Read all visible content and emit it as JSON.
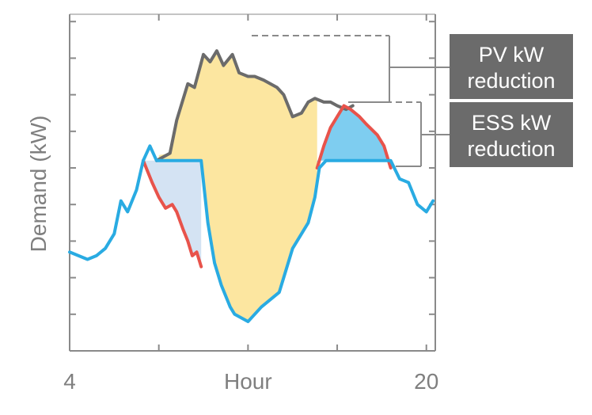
{
  "chart_data": {
    "type": "area",
    "xlabel": "Hour",
    "ylabel": "Demand (kW)",
    "xlim": [
      4,
      20.4
    ],
    "ylim": [
      0,
      9.2
    ],
    "grid": false,
    "x_ticks": [
      4,
      8,
      12,
      16,
      20
    ],
    "x_tick_labels": [
      "4",
      "",
      "Hour",
      "",
      "20"
    ],
    "y_ticks": [
      0,
      1,
      2,
      3,
      4,
      5,
      6,
      7,
      8,
      9
    ],
    "series": [
      {
        "name": "",
        "color": "#6b6b6b",
        "x": [
          7.9,
          8.5,
          8.8,
          9.3,
          9.6,
          10.0,
          10.3,
          10.6,
          10.9,
          11.3,
          11.6,
          12.0,
          12.3,
          12.7,
          13.0,
          13.3,
          13.6,
          14.0,
          14.4,
          14.7,
          15.0,
          15.4,
          15.7,
          16.0,
          16.4,
          16.7
        ],
        "values": [
          5.2,
          5.4,
          6.3,
          7.3,
          7.2,
          8.1,
          7.9,
          8.2,
          7.8,
          8.1,
          7.6,
          7.5,
          7.5,
          7.4,
          7.3,
          7.2,
          7.0,
          6.4,
          6.5,
          6.8,
          6.9,
          6.8,
          6.8,
          6.7,
          6.6,
          6.7
        ]
      },
      {
        "name": "",
        "color": "#e8534b",
        "x": [
          7.3,
          7.7,
          8.0,
          8.3,
          8.6,
          8.8,
          9.1,
          9.3,
          9.5,
          9.7,
          9.9,
          15.1,
          15.4,
          15.7,
          16.0,
          16.3,
          16.6,
          17.0,
          17.3,
          17.8,
          18.1,
          18.4
        ],
        "values": [
          5.2,
          4.6,
          4.2,
          3.9,
          4.0,
          3.8,
          3.3,
          3.0,
          2.6,
          2.7,
          2.3,
          5.0,
          5.6,
          6.1,
          6.4,
          6.7,
          6.6,
          6.4,
          6.2,
          5.9,
          5.6,
          5.0
        ]
      },
      {
        "name": "",
        "color": "#29abe2",
        "x": [
          4.0,
          4.4,
          4.8,
          5.2,
          5.6,
          6.0,
          6.3,
          6.6,
          7.0,
          7.3,
          7.6,
          7.9,
          8.5,
          9.9,
          10.2,
          10.5,
          10.8,
          11.0,
          11.2,
          11.4,
          11.7,
          12.0,
          12.3,
          12.6,
          13.0,
          13.4,
          13.7,
          14.0,
          14.4,
          14.7,
          15.0,
          15.2,
          15.5,
          16.0,
          16.5,
          17.0,
          17.5,
          18.0,
          18.4,
          18.8,
          19.2,
          19.6,
          20.0,
          20.3
        ],
        "values": [
          2.7,
          2.6,
          2.5,
          2.6,
          2.8,
          3.2,
          4.1,
          3.8,
          4.4,
          5.2,
          5.6,
          5.2,
          5.2,
          5.2,
          3.5,
          2.4,
          1.8,
          1.5,
          1.2,
          1.0,
          0.9,
          0.8,
          1.0,
          1.2,
          1.4,
          1.6,
          2.2,
          2.8,
          3.2,
          3.5,
          4.2,
          5.0,
          5.2,
          5.2,
          5.2,
          5.2,
          5.2,
          5.2,
          5.2,
          4.7,
          4.6,
          4.0,
          3.8,
          4.1
        ]
      }
    ],
    "fills": [
      {
        "id": "pv",
        "color": "#fce6a0"
      },
      {
        "id": "ess_morning",
        "color": "#d4e3f3"
      },
      {
        "id": "ess_evening",
        "color": "#7ecdf0"
      }
    ],
    "annotations": [
      {
        "id": "pv",
        "lines": [
          "PV kW",
          "reduction"
        ],
        "box_color": "#6b6b6b",
        "text_color": "#ffffff"
      },
      {
        "id": "ess",
        "lines": [
          "ESS kW",
          "reduction"
        ],
        "box_color": "#6b6b6b",
        "text_color": "#ffffff"
      }
    ]
  }
}
